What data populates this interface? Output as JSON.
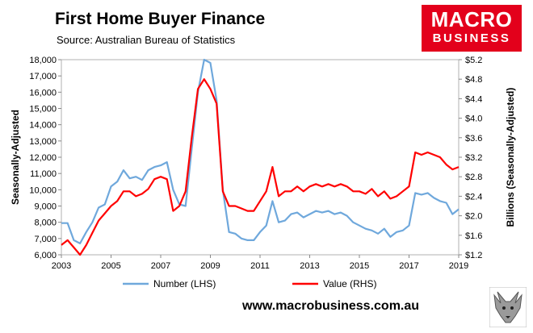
{
  "header": {
    "title": "First Home Buyer Finance",
    "subtitle": "Source: Australian Bureau of Statistics"
  },
  "brand": {
    "line1": "MACRO",
    "line2": "BUSINESS",
    "website": "www.macrobusiness.com.au"
  },
  "colors": {
    "number_series": "#6fa8dc",
    "value_series": "#ff0000",
    "logo": "#e3001b"
  },
  "chart_data": {
    "type": "line",
    "xlabel": "",
    "ylabel_left": "Seasonally-Adjusted",
    "ylabel_right": "Billions (Seasonally-Adjusted)",
    "xlim": [
      2003,
      2019
    ],
    "ylim_left": [
      6000,
      18000
    ],
    "ylim_right": [
      1.2,
      5.2
    ],
    "x_ticks": [
      "2003",
      "2005",
      "2007",
      "2009",
      "2011",
      "2013",
      "2015",
      "2017",
      "2019"
    ],
    "y_left_ticks": [
      "6,000",
      "7,000",
      "8,000",
      "9,000",
      "10,000",
      "11,000",
      "12,000",
      "13,000",
      "14,000",
      "15,000",
      "16,000",
      "17,000",
      "18,000"
    ],
    "y_right_ticks": [
      "$1.2",
      "$1.6",
      "$2.0",
      "$2.4",
      "$2.8",
      "$3.2",
      "$3.6",
      "$4.0",
      "$4.4",
      "$4.8",
      "$5.2"
    ],
    "grid": false,
    "legend_position": "bottom",
    "series": [
      {
        "name": "Number (LHS)",
        "axis": "left",
        "x": [
          2003.0,
          2003.25,
          2003.5,
          2003.75,
          2004.0,
          2004.25,
          2004.5,
          2004.75,
          2005.0,
          2005.25,
          2005.5,
          2005.75,
          2006.0,
          2006.25,
          2006.5,
          2006.75,
          2007.0,
          2007.25,
          2007.5,
          2007.75,
          2008.0,
          2008.25,
          2008.5,
          2008.75,
          2009.0,
          2009.25,
          2009.5,
          2009.75,
          2010.0,
          2010.25,
          2010.5,
          2010.75,
          2011.0,
          2011.25,
          2011.5,
          2011.75,
          2012.0,
          2012.25,
          2012.5,
          2012.75,
          2013.0,
          2013.25,
          2013.5,
          2013.75,
          2014.0,
          2014.25,
          2014.5,
          2014.75,
          2015.0,
          2015.25,
          2015.5,
          2015.75,
          2016.0,
          2016.25,
          2016.5,
          2016.75,
          2017.0,
          2017.25,
          2017.5,
          2017.75,
          2018.0,
          2018.25,
          2018.5,
          2018.75,
          2019.0
        ],
        "values": [
          7950,
          7950,
          6900,
          6700,
          7400,
          8000,
          8900,
          9100,
          10200,
          10500,
          11200,
          10700,
          10800,
          10600,
          11200,
          11400,
          11500,
          11700,
          10000,
          9100,
          9000,
          12500,
          16000,
          18000,
          17800,
          15500,
          10000,
          7400,
          7300,
          7000,
          6900,
          6900,
          7400,
          7800,
          9300,
          8000,
          8100,
          8500,
          8600,
          8300,
          8500,
          8700,
          8600,
          8700,
          8500,
          8600,
          8400,
          8000,
          7800,
          7600,
          7500,
          7300,
          7600,
          7100,
          7400,
          7500,
          7800,
          9800,
          9700,
          9800,
          9500,
          9300,
          9200,
          8500,
          8800
        ]
      },
      {
        "name": "Value (RHS)",
        "axis": "right",
        "x": [
          2003.0,
          2003.25,
          2003.5,
          2003.75,
          2004.0,
          2004.25,
          2004.5,
          2004.75,
          2005.0,
          2005.25,
          2005.5,
          2005.75,
          2006.0,
          2006.25,
          2006.5,
          2006.75,
          2007.0,
          2007.25,
          2007.5,
          2007.75,
          2008.0,
          2008.25,
          2008.5,
          2008.75,
          2009.0,
          2009.25,
          2009.5,
          2009.75,
          2010.0,
          2010.25,
          2010.5,
          2010.75,
          2011.0,
          2011.25,
          2011.5,
          2011.75,
          2012.0,
          2012.25,
          2012.5,
          2012.75,
          2013.0,
          2013.25,
          2013.5,
          2013.75,
          2014.0,
          2014.25,
          2014.5,
          2014.75,
          2015.0,
          2015.25,
          2015.5,
          2015.75,
          2016.0,
          2016.25,
          2016.5,
          2016.75,
          2017.0,
          2017.25,
          2017.5,
          2017.75,
          2018.0,
          2018.25,
          2018.5,
          2018.75,
          2019.0
        ],
        "values": [
          1.4,
          1.5,
          1.35,
          1.2,
          1.4,
          1.65,
          1.9,
          2.05,
          2.2,
          2.3,
          2.5,
          2.5,
          2.4,
          2.45,
          2.55,
          2.75,
          2.8,
          2.75,
          2.1,
          2.2,
          2.5,
          3.6,
          4.6,
          4.8,
          4.6,
          4.3,
          2.5,
          2.2,
          2.2,
          2.15,
          2.1,
          2.1,
          2.3,
          2.5,
          3.0,
          2.4,
          2.5,
          2.5,
          2.6,
          2.5,
          2.6,
          2.65,
          2.6,
          2.65,
          2.6,
          2.65,
          2.6,
          2.5,
          2.5,
          2.45,
          2.55,
          2.4,
          2.5,
          2.35,
          2.4,
          2.5,
          2.6,
          3.3,
          3.25,
          3.3,
          3.25,
          3.2,
          3.05,
          2.95,
          3.0
        ]
      }
    ]
  }
}
